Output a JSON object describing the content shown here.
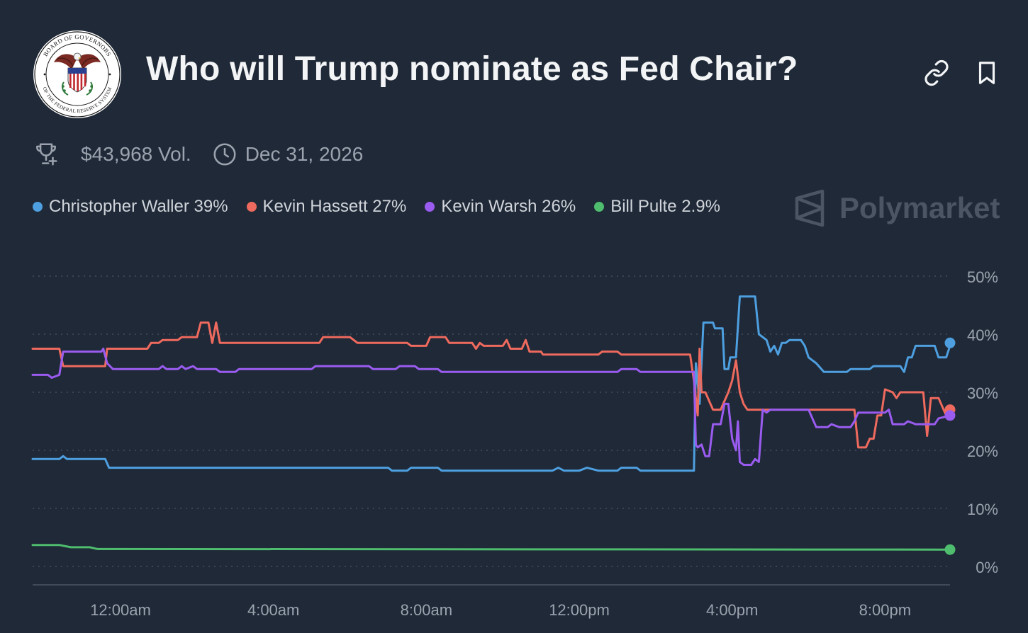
{
  "header": {
    "title": "Who will Trump nominate as Fed Chair?",
    "seal_text_top": "BOARD OF GOVERNORS",
    "seal_text_bottom": "OF THE FEDERAL RESERVE SYSTEM",
    "link_icon": "link-icon",
    "bookmark_icon": "bookmark-icon"
  },
  "meta": {
    "volume": "$43,968 Vol.",
    "end_date": "Dec 31, 2026",
    "trophy_icon": "trophy-icon",
    "clock_icon": "clock-icon"
  },
  "legend": [
    {
      "label": "Christopher Waller 39%",
      "color": "#4e9fe0"
    },
    {
      "label": "Kevin Hassett 27%",
      "color": "#ef6a5e"
    },
    {
      "label": "Kevin Warsh 26%",
      "color": "#9a5cf0"
    },
    {
      "label": "Bill Pulte 2.9%",
      "color": "#4fbd6e"
    }
  ],
  "brand": "Polymarket",
  "chart_data": {
    "type": "line",
    "x_unit": "hours (time of day, day 1 starting 12:00am = 0)",
    "x_range": [
      -2.3,
      21.7
    ],
    "xticks": [
      {
        "x": 0,
        "label": "12:00am"
      },
      {
        "x": 4,
        "label": "4:00am"
      },
      {
        "x": 8,
        "label": "8:00am"
      },
      {
        "x": 12,
        "label": "12:00pm"
      },
      {
        "x": 16,
        "label": "4:00pm"
      },
      {
        "x": 20,
        "label": "8:00pm"
      }
    ],
    "ylim": [
      0,
      50
    ],
    "yticks": [
      "0%",
      "10%",
      "20%",
      "30%",
      "40%",
      "50%"
    ],
    "yticks_values": [
      0,
      10,
      20,
      30,
      40,
      50
    ],
    "grid": true,
    "series": [
      {
        "name": "Christopher Waller",
        "color": "#4e9fe0",
        "points": [
          [
            -2.3,
            18.5
          ],
          [
            -1.6,
            18.5
          ],
          [
            -1.5,
            19
          ],
          [
            -1.4,
            18.5
          ],
          [
            -0.4,
            18.5
          ],
          [
            -0.3,
            17
          ],
          [
            7.0,
            17
          ],
          [
            7.1,
            16.5
          ],
          [
            7.5,
            16.5
          ],
          [
            7.6,
            17
          ],
          [
            8.3,
            17
          ],
          [
            8.4,
            16.5
          ],
          [
            11.3,
            16.5
          ],
          [
            11.45,
            17
          ],
          [
            11.6,
            16.5
          ],
          [
            12.0,
            16.5
          ],
          [
            12.2,
            17
          ],
          [
            12.5,
            16.5
          ],
          [
            13.0,
            16.5
          ],
          [
            13.1,
            17
          ],
          [
            13.5,
            17
          ],
          [
            13.6,
            16.5
          ],
          [
            15.0,
            16.5
          ],
          [
            15.05,
            35
          ],
          [
            15.15,
            28
          ],
          [
            15.25,
            42
          ],
          [
            15.5,
            42
          ],
          [
            15.55,
            41
          ],
          [
            15.75,
            41
          ],
          [
            15.8,
            34
          ],
          [
            15.9,
            34
          ],
          [
            15.95,
            36
          ],
          [
            16.1,
            36
          ],
          [
            16.2,
            46.5
          ],
          [
            16.6,
            46.5
          ],
          [
            16.7,
            40
          ],
          [
            16.9,
            39
          ],
          [
            17.0,
            37
          ],
          [
            17.1,
            38
          ],
          [
            17.2,
            36.5
          ],
          [
            17.3,
            38.5
          ],
          [
            17.4,
            38.5
          ],
          [
            17.5,
            39
          ],
          [
            17.8,
            39
          ],
          [
            17.9,
            38
          ],
          [
            18.0,
            36
          ],
          [
            18.2,
            35
          ],
          [
            18.4,
            33.5
          ],
          [
            19.0,
            33.5
          ],
          [
            19.1,
            34
          ],
          [
            19.6,
            34
          ],
          [
            19.7,
            34.5
          ],
          [
            20.4,
            34.5
          ],
          [
            20.5,
            33.5
          ],
          [
            20.6,
            36
          ],
          [
            20.7,
            36
          ],
          [
            20.8,
            38
          ],
          [
            21.3,
            38
          ],
          [
            21.4,
            36
          ],
          [
            21.6,
            36
          ],
          [
            21.8,
            38
          ],
          [
            22.0,
            38.5
          ]
        ]
      },
      {
        "name": "Kevin Hassett",
        "color": "#ef6a5e",
        "points": [
          [
            -2.3,
            37.5
          ],
          [
            -1.6,
            37.5
          ],
          [
            -1.5,
            34.5
          ],
          [
            -0.4,
            34.5
          ],
          [
            -0.35,
            37.5
          ],
          [
            0.7,
            37.5
          ],
          [
            0.8,
            38.5
          ],
          [
            1.0,
            38.5
          ],
          [
            1.1,
            39
          ],
          [
            1.5,
            39
          ],
          [
            1.6,
            39.5
          ],
          [
            2.0,
            39.5
          ],
          [
            2.1,
            42
          ],
          [
            2.3,
            42
          ],
          [
            2.4,
            38.5
          ],
          [
            2.5,
            42
          ],
          [
            2.6,
            38.5
          ],
          [
            4.0,
            38.5
          ],
          [
            5.2,
            38.5
          ],
          [
            5.3,
            39.5
          ],
          [
            6.0,
            39.5
          ],
          [
            6.2,
            38.5
          ],
          [
            7.5,
            38.5
          ],
          [
            7.6,
            38
          ],
          [
            8.0,
            38
          ],
          [
            8.1,
            39.5
          ],
          [
            8.5,
            39.5
          ],
          [
            8.6,
            38.5
          ],
          [
            9.2,
            38.5
          ],
          [
            9.3,
            37.5
          ],
          [
            9.4,
            38.5
          ],
          [
            9.5,
            38
          ],
          [
            10.0,
            38
          ],
          [
            10.1,
            39
          ],
          [
            10.2,
            37.5
          ],
          [
            10.5,
            37.5
          ],
          [
            10.6,
            39
          ],
          [
            10.7,
            37
          ],
          [
            11.0,
            37
          ],
          [
            11.05,
            36.5
          ],
          [
            12.5,
            36.5
          ],
          [
            12.6,
            37
          ],
          [
            13.0,
            37
          ],
          [
            13.1,
            36.5
          ],
          [
            14.9,
            36.5
          ],
          [
            15.0,
            32
          ],
          [
            15.1,
            26
          ],
          [
            15.15,
            37.5
          ],
          [
            15.2,
            30
          ],
          [
            15.3,
            30
          ],
          [
            15.5,
            27
          ],
          [
            15.7,
            27
          ],
          [
            15.9,
            30
          ],
          [
            16.0,
            32
          ],
          [
            16.1,
            35.5
          ],
          [
            16.2,
            30
          ],
          [
            16.3,
            28
          ],
          [
            16.4,
            27
          ],
          [
            17.4,
            27
          ],
          [
            18.0,
            27
          ],
          [
            19.0,
            27
          ],
          [
            19.2,
            27
          ],
          [
            19.3,
            20.5
          ],
          [
            19.5,
            20.5
          ],
          [
            19.6,
            22
          ],
          [
            19.7,
            22
          ],
          [
            19.8,
            26
          ],
          [
            19.9,
            26
          ],
          [
            20.0,
            30.5
          ],
          [
            20.2,
            30
          ],
          [
            20.3,
            29
          ],
          [
            20.4,
            30
          ],
          [
            21.0,
            30
          ],
          [
            21.1,
            22.5
          ],
          [
            21.2,
            29
          ],
          [
            21.4,
            29
          ],
          [
            21.6,
            26
          ],
          [
            21.8,
            27
          ],
          [
            22.0,
            27
          ]
        ]
      },
      {
        "name": "Kevin Warsh",
        "color": "#9a5cf0",
        "points": [
          [
            -2.3,
            33
          ],
          [
            -1.9,
            33
          ],
          [
            -1.8,
            32.5
          ],
          [
            -1.6,
            33
          ],
          [
            -1.5,
            37
          ],
          [
            -0.5,
            37
          ],
          [
            -0.45,
            37.5
          ],
          [
            -0.35,
            35
          ],
          [
            -0.2,
            34
          ],
          [
            1.0,
            34
          ],
          [
            1.1,
            34.5
          ],
          [
            1.2,
            34
          ],
          [
            1.5,
            34
          ],
          [
            1.6,
            34.5
          ],
          [
            1.7,
            34
          ],
          [
            1.9,
            34.5
          ],
          [
            2.0,
            34
          ],
          [
            2.5,
            34
          ],
          [
            2.6,
            33.5
          ],
          [
            3.0,
            33.5
          ],
          [
            3.1,
            34
          ],
          [
            5.0,
            34
          ],
          [
            5.1,
            34.5
          ],
          [
            6.5,
            34.5
          ],
          [
            6.6,
            34
          ],
          [
            7.2,
            34
          ],
          [
            7.3,
            34.5
          ],
          [
            7.7,
            34.5
          ],
          [
            7.8,
            34
          ],
          [
            8.3,
            34
          ],
          [
            8.4,
            33.5
          ],
          [
            13.0,
            33.5
          ],
          [
            13.1,
            34
          ],
          [
            13.5,
            34
          ],
          [
            13.6,
            33.5
          ],
          [
            15.0,
            33.5
          ],
          [
            15.05,
            21
          ],
          [
            15.1,
            20.5
          ],
          [
            15.2,
            21
          ],
          [
            15.3,
            19
          ],
          [
            15.4,
            19
          ],
          [
            15.5,
            24.5
          ],
          [
            15.7,
            24.5
          ],
          [
            15.8,
            28
          ],
          [
            15.9,
            28
          ],
          [
            16.0,
            22
          ],
          [
            16.1,
            20
          ],
          [
            16.15,
            25
          ],
          [
            16.2,
            18
          ],
          [
            16.3,
            17.5
          ],
          [
            16.5,
            17.5
          ],
          [
            16.6,
            18.5
          ],
          [
            16.7,
            18
          ],
          [
            16.8,
            27
          ],
          [
            16.9,
            26.5
          ],
          [
            17.0,
            27
          ],
          [
            18.0,
            27
          ],
          [
            18.2,
            24
          ],
          [
            18.5,
            24
          ],
          [
            18.6,
            24.5
          ],
          [
            18.8,
            24
          ],
          [
            19.1,
            24
          ],
          [
            19.2,
            25
          ],
          [
            19.3,
            26.5
          ],
          [
            20.0,
            26.5
          ],
          [
            20.1,
            27
          ],
          [
            20.2,
            24.5
          ],
          [
            20.5,
            24.5
          ],
          [
            20.6,
            25
          ],
          [
            20.8,
            24.5
          ],
          [
            21.3,
            24.5
          ],
          [
            21.4,
            25.5
          ],
          [
            22.0,
            26
          ]
        ]
      },
      {
        "name": "Bill Pulte",
        "color": "#4fbd6e",
        "points": [
          [
            -2.3,
            3.7
          ],
          [
            -1.6,
            3.7
          ],
          [
            -1.3,
            3.3
          ],
          [
            -0.8,
            3.3
          ],
          [
            -0.6,
            3
          ],
          [
            22.0,
            2.9
          ]
        ]
      }
    ]
  }
}
